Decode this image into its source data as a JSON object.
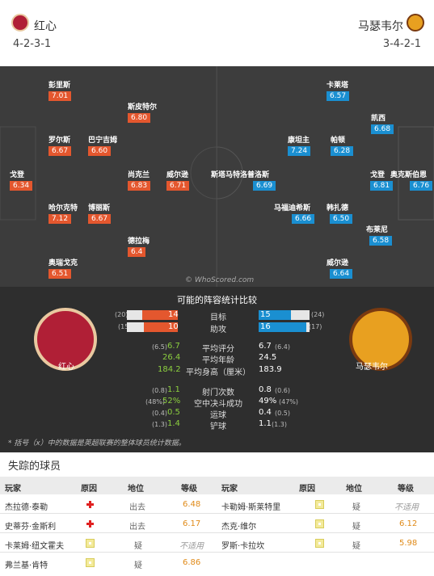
{
  "home": {
    "name": "红心",
    "formation": "4-2-3-1",
    "color": "#b01f36"
  },
  "away": {
    "name": "马瑟韦尔",
    "formation": "3-4-2-1",
    "color": "#e8a020"
  },
  "home_players": [
    {
      "name": "彭里斯",
      "rating": "7.01"
    },
    {
      "name": "斯皮特尔",
      "rating": "6.80"
    },
    {
      "name": "罗尔斯",
      "rating": "6.67"
    },
    {
      "name": "巴宁吉姆",
      "rating": "6.60"
    },
    {
      "name": "戈登",
      "rating": "6.34"
    },
    {
      "name": "尚克兰",
      "rating": "6.83"
    },
    {
      "name": "威尔逊",
      "rating": "6.71"
    },
    {
      "name": "哈尔克特",
      "rating": "7.12"
    },
    {
      "name": "博丽斯",
      "rating": "6.67"
    },
    {
      "name": "德拉梅",
      "rating": "6.4"
    },
    {
      "name": "奥瑞戈克",
      "rating": "6.51"
    }
  ],
  "away_players": [
    {
      "name": "卡莱塔",
      "rating": "6.57"
    },
    {
      "name": "凯西",
      "rating": "6.68"
    },
    {
      "name": "康坦主",
      "rating": "7.24"
    },
    {
      "name": "帕顿",
      "rating": "6.28"
    },
    {
      "name": "斯塔马特洛普洛斯",
      "rating": "6.69"
    },
    {
      "name": "戈登",
      "rating": "6.81"
    },
    {
      "name": "奥克斯伯恩",
      "rating": "6.76"
    },
    {
      "name": "马福迪希斯",
      "rating": "6.66"
    },
    {
      "name": "韩扎德",
      "rating": "6.50"
    },
    {
      "name": "布莱尼",
      "rating": "6.58"
    },
    {
      "name": "威尔逊",
      "rating": "6.64"
    }
  ],
  "watermark": "© WhoScored.com",
  "stats": {
    "title": "可能的阵容统计比较",
    "bars": [
      {
        "label": "目标",
        "home": "14",
        "home_avg": "(20)",
        "away": "15",
        "away_avg": "(24)",
        "home_frac": 0.7,
        "away_frac": 0.63
      },
      {
        "label": "助攻",
        "home": "10",
        "home_avg": "(15)",
        "away": "16",
        "away_avg": "(17)",
        "home_frac": 0.67,
        "away_frac": 0.94
      }
    ],
    "rows1": [
      {
        "label": "平均评分",
        "home": "6.7",
        "home_avg": "(6.5)",
        "away": "6.7",
        "away_avg": "(6.4)"
      },
      {
        "label": "平均年龄",
        "home": "26.4",
        "home_avg": "",
        "away": "24.5",
        "away_avg": ""
      },
      {
        "label": "平均身高（厘米）",
        "home": "184.2",
        "home_avg": "",
        "away": "183.9",
        "away_avg": ""
      }
    ],
    "rows2": [
      {
        "label": "射门次数",
        "home": "1.1",
        "home_avg": "(0.8)",
        "away": "0.8",
        "away_avg": "(0.6)"
      },
      {
        "label": "空中决斗成功",
        "home": "52%",
        "home_avg": "(48%)",
        "away": "49%",
        "away_avg": "(47%)"
      },
      {
        "label": "运球",
        "home": "0.5",
        "home_avg": "(0.4)",
        "away": "0.4",
        "away_avg": "(0.5)"
      },
      {
        "label": "铲球",
        "home": "1.4",
        "home_avg": "(1.3)",
        "away": "1.1",
        "away_avg": "(1.3)"
      }
    ],
    "footnote": "* 括号（x）中的数据是英超联赛的整体球员统计数据。"
  },
  "missing": {
    "title": "失踪的球员",
    "headers": {
      "player": "玩家",
      "reason": "原因",
      "position": "地位",
      "rating": "等级"
    },
    "home": [
      {
        "name": "杰拉德·泰勒",
        "reason": "injury",
        "status": "出去",
        "rating": "6.48"
      },
      {
        "name": "史蒂芬·金斯利",
        "reason": "injury",
        "status": "出去",
        "rating": "6.17"
      },
      {
        "name": "卡莱姆·纽文霍夫",
        "reason": "doubt",
        "status": "疑",
        "rating": "不适用"
      },
      {
        "name": "弗兰基·肯特",
        "reason": "doubt",
        "status": "疑",
        "rating": "6.86"
      }
    ],
    "away": [
      {
        "name": "卡勒姆·斯莱特里",
        "reason": "doubt",
        "status": "疑",
        "rating": "不适用"
      },
      {
        "name": "杰克·维尔",
        "reason": "doubt",
        "status": "疑",
        "rating": "6.12"
      },
      {
        "name": "罗斯·卡拉坎",
        "reason": "doubt",
        "status": "疑",
        "rating": "5.98"
      }
    ]
  }
}
